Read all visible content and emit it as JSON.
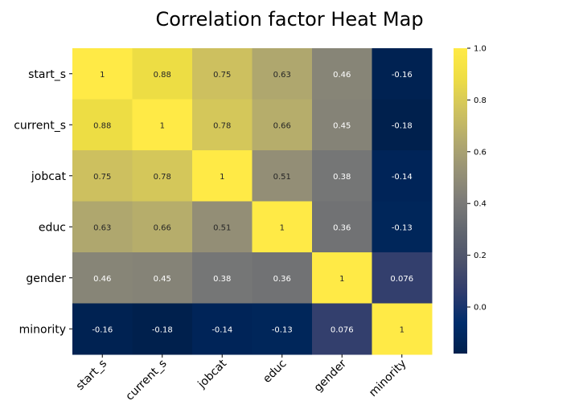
{
  "chart_data": {
    "type": "heatmap",
    "title": "Correlation factor Heat Map",
    "xlabel": "",
    "ylabel": "",
    "row_labels": [
      "start_s",
      "current_s",
      "jobcat",
      "educ",
      "gender",
      "minority"
    ],
    "column_labels": [
      "start_s",
      "current_s",
      "jobcat",
      "educ",
      "gender",
      "minority"
    ],
    "matrix": [
      [
        1,
        0.88,
        0.75,
        0.63,
        0.46,
        -0.16
      ],
      [
        0.88,
        1,
        0.78,
        0.66,
        0.45,
        -0.18
      ],
      [
        0.75,
        0.78,
        1,
        0.51,
        0.38,
        -0.14
      ],
      [
        0.63,
        0.66,
        0.51,
        1,
        0.36,
        -0.13
      ],
      [
        0.46,
        0.45,
        0.38,
        0.36,
        1,
        0.076
      ],
      [
        -0.16,
        -0.18,
        -0.14,
        -0.13,
        0.076,
        1
      ]
    ],
    "cell_labels": [
      [
        "1",
        "0.88",
        "0.75",
        "0.63",
        "0.46",
        "-0.16"
      ],
      [
        "0.88",
        "1",
        "0.78",
        "0.66",
        "0.45",
        "-0.18"
      ],
      [
        "0.75",
        "0.78",
        "1",
        "0.51",
        "0.38",
        "-0.14"
      ],
      [
        "0.63",
        "0.66",
        "0.51",
        "1",
        "0.36",
        "-0.13"
      ],
      [
        "0.46",
        "0.45",
        "0.38",
        "0.36",
        "1",
        "0.076"
      ],
      [
        "-0.16",
        "-0.18",
        "-0.14",
        "-0.13",
        "0.076",
        "1"
      ]
    ],
    "colormap": "cividis",
    "colorbar": {
      "range": [
        -0.18,
        1.0
      ],
      "ticks": [
        0.0,
        0.2,
        0.4,
        0.6,
        0.8,
        1.0
      ],
      "tick_labels": [
        "0.0",
        "0.2",
        "0.4",
        "0.6",
        "0.8",
        "1.0"
      ]
    },
    "grid": false,
    "x_tick_rotation": "45deg"
  }
}
